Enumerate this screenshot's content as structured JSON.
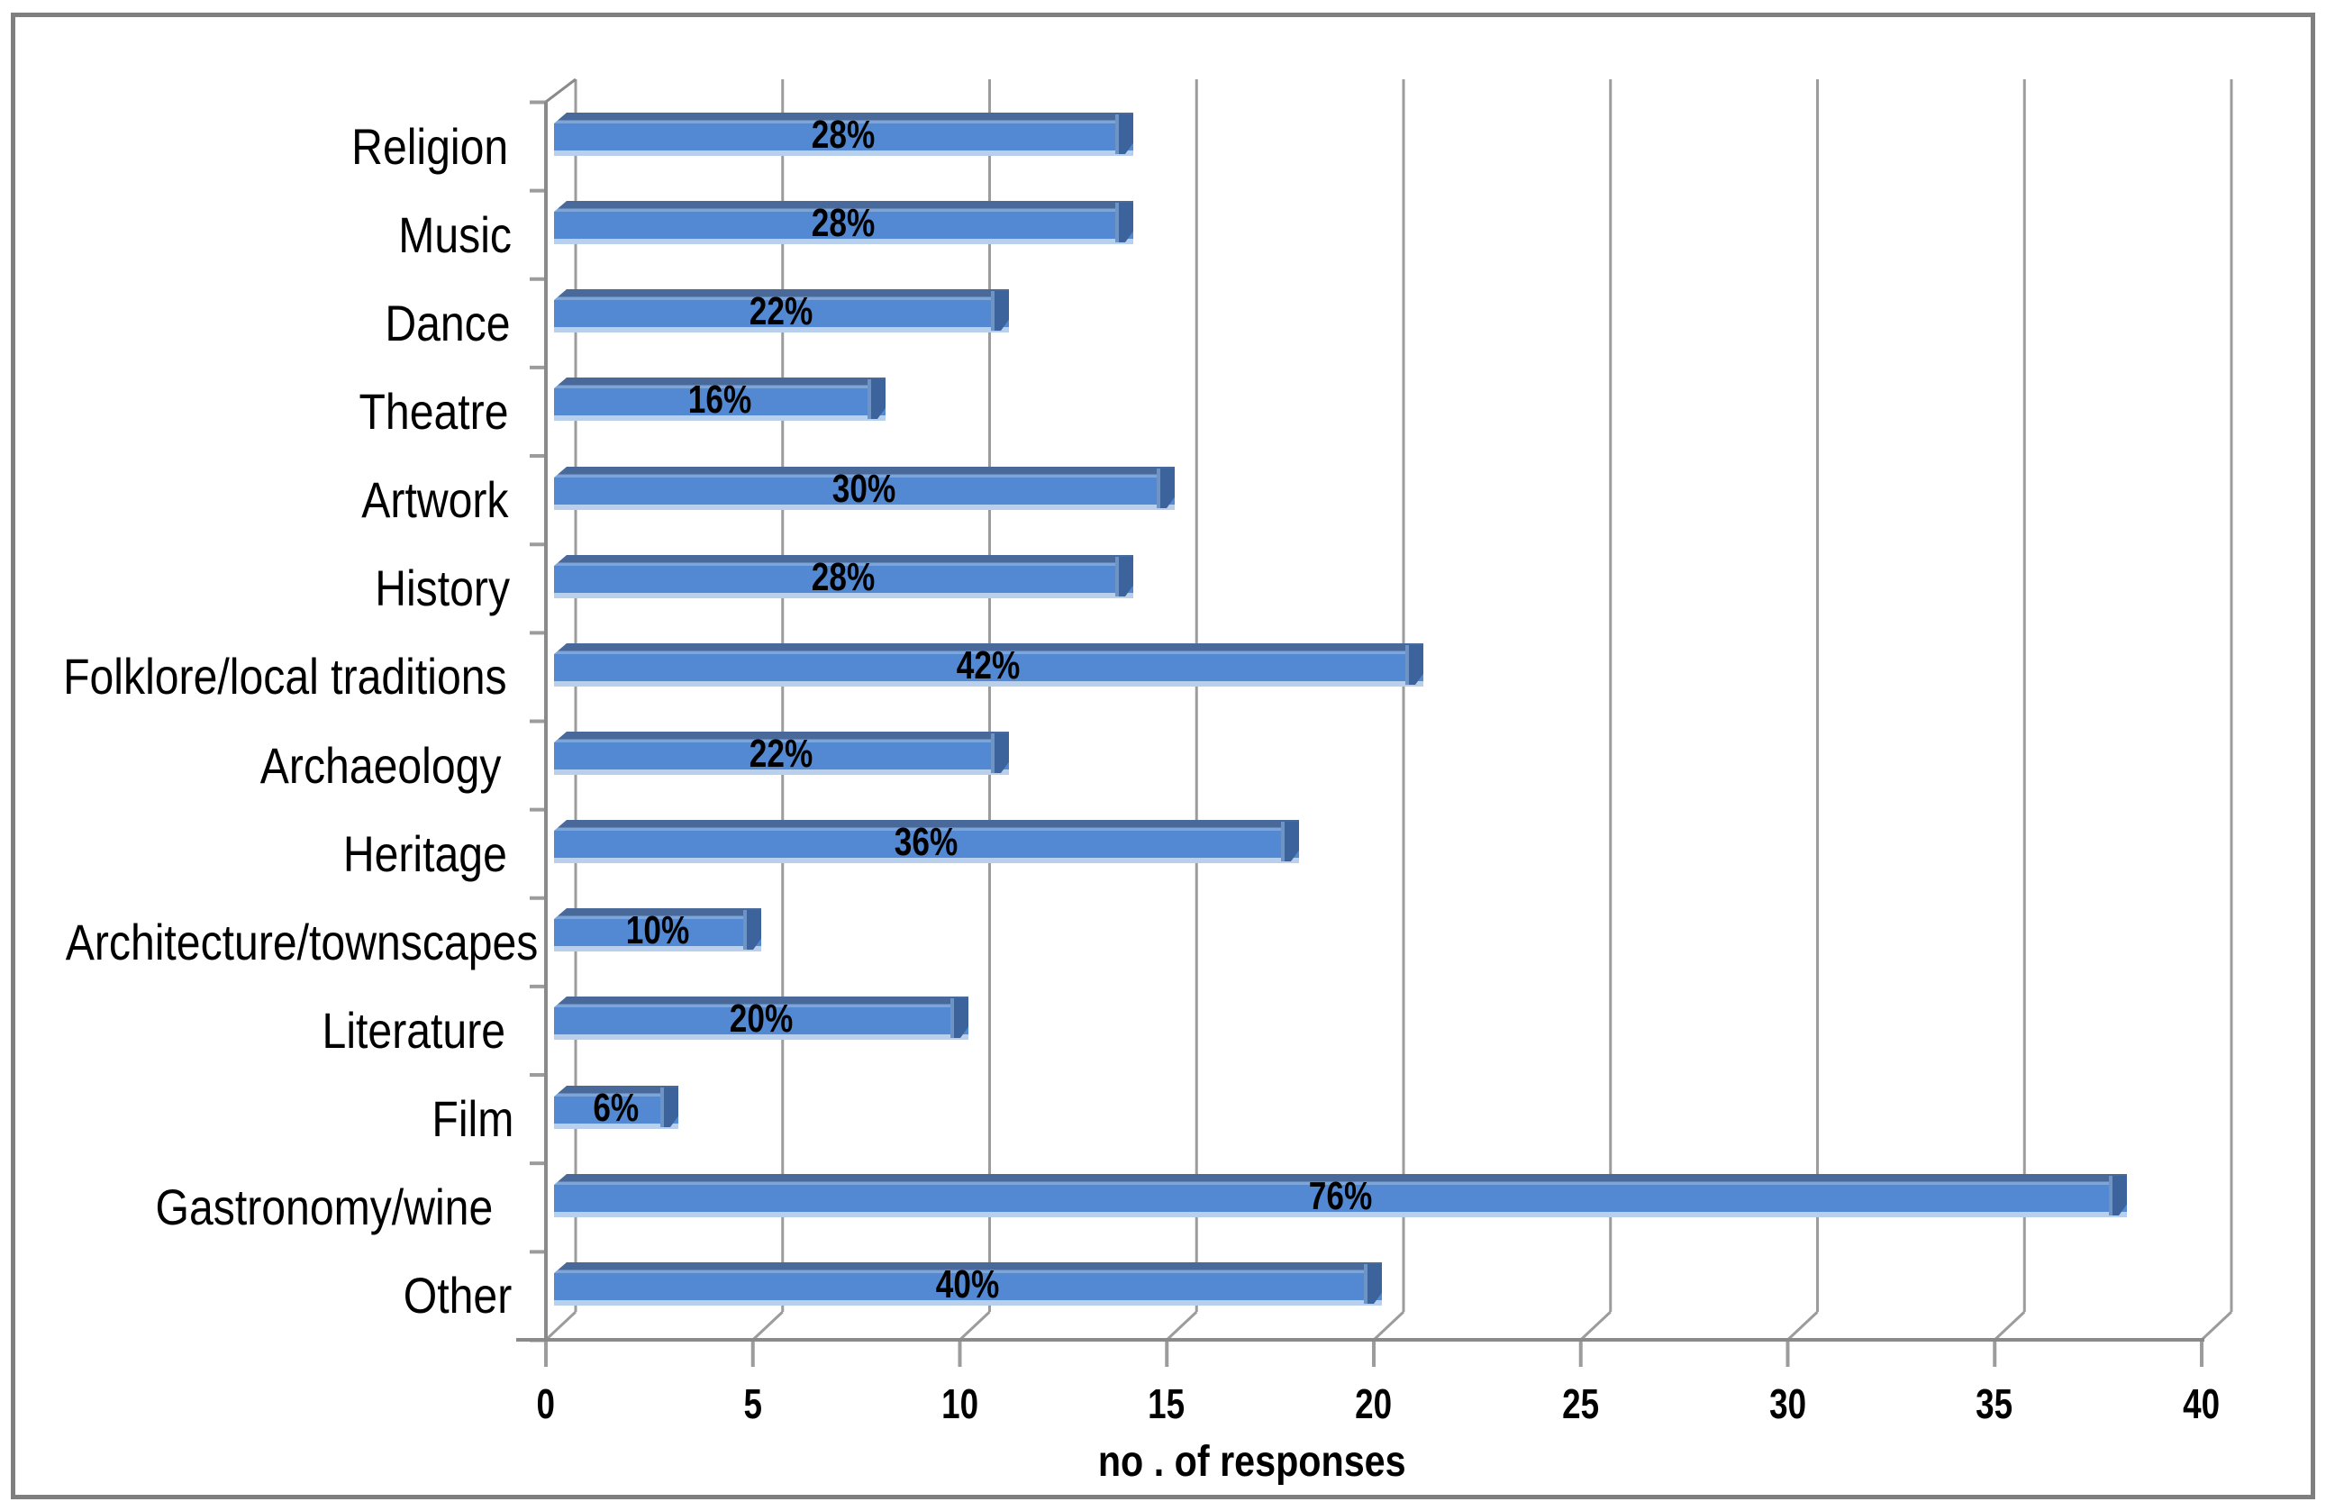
{
  "chart_data": {
    "type": "bar",
    "orientation": "horizontal",
    "style": "3d-horizontal-bar",
    "categories": [
      "Religion",
      "Music",
      "Dance",
      "Theatre",
      "Artwork",
      "History",
      "Folklore/local traditions",
      "Archaeology",
      "Heritage",
      "Architecture/townscapes",
      "Literature",
      "Film",
      "Gastronomy/wine",
      "Other"
    ],
    "values": [
      14,
      14,
      11,
      8,
      15,
      14,
      21,
      11,
      18,
      5,
      10,
      3,
      38,
      20
    ],
    "bar_labels": [
      "28%",
      "28%",
      "22%",
      "16%",
      "30%",
      "28%",
      "42%",
      "22%",
      "36%",
      "10%",
      "20%",
      "6%",
      "76%",
      "40%"
    ],
    "xlabel": "no . of responses",
    "x_ticks": [
      0,
      5,
      10,
      15,
      20,
      25,
      30,
      35,
      40
    ],
    "xlim": [
      0,
      40
    ],
    "grid": true,
    "legend": "none",
    "colors": {
      "bar_body": "#5289d2",
      "bar_bevel_dark": "#49699a",
      "bar_bevel_light": "#7ea5d8",
      "bar_bottom_edge": "#b9d0ec",
      "bar_end_cap": "#3d639c",
      "gridline": "#9c9c9c",
      "axis": "#8a8a8a",
      "frame_border": "#7f7f7f",
      "label_text": "#000000"
    }
  }
}
